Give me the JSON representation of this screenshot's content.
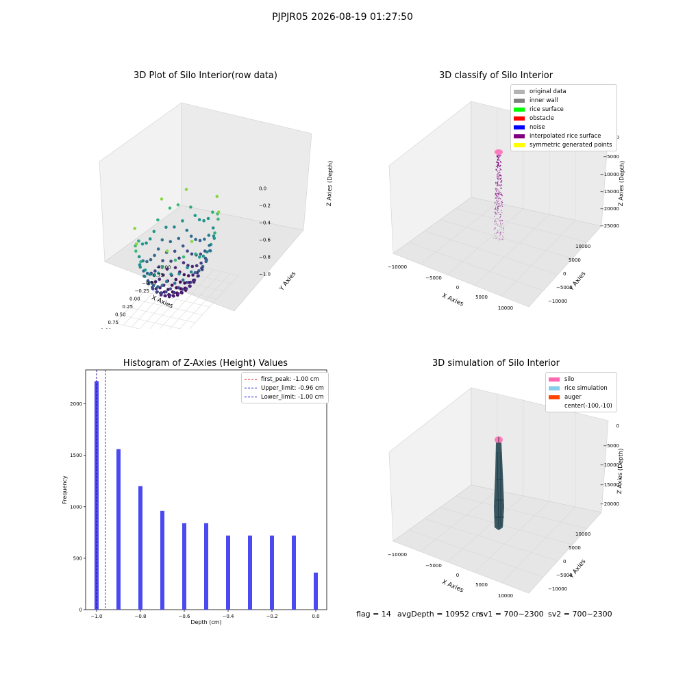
{
  "suptitle": "PJPJR05 2026-08-19 01:27:50",
  "colors": {
    "axis_pane": "#f2f2f2",
    "grid": "#d8d8d8",
    "bar": "#4a4af0",
    "peak_line": "#ff0000",
    "limit_line": "#0000cc",
    "rice_sim": "#2f4f5a"
  },
  "chart_data": [
    {
      "type": "scatter",
      "panel": "top-left",
      "title": "3D Plot of Silo Interior(row data)",
      "xlabel": "X Axies",
      "ylabel": "Y Axies",
      "zlabel": "Z Axies (Depth)",
      "x_ticks": [
        "−1.00",
        "−0.75",
        "−0.50",
        "−0.25",
        "0.00",
        "0.25",
        "0.50",
        "0.75",
        "1.00"
      ],
      "y_ticks": [
        "−1.00",
        "−0.75",
        "−0.50",
        "−0.25",
        "0.00",
        "0.25",
        "0.50",
        "0.75",
        "1.00"
      ],
      "z_ticks": [
        "0.0",
        "−0.2",
        "−0.4",
        "−0.6",
        "−0.8",
        "−1.0"
      ],
      "xlim": [
        -1,
        1
      ],
      "ylim": [
        -1,
        1
      ],
      "zlim": [
        -1.1,
        0.05
      ],
      "surface": "hemispherical bowl z = −sqrt(1 − x² − y²), colored by depth (viridis)",
      "colormap": "viridis",
      "grid": true
    },
    {
      "type": "scatter",
      "panel": "top-right",
      "title": "3D classify of Silo Interior",
      "xlabel": "X Axies",
      "ylabel": "Y Axies",
      "zlabel": "Z Axies (Depth)",
      "x_ticks": [
        "−10000",
        "−5000",
        "0",
        "5000",
        "10000"
      ],
      "y_ticks": [
        "−10000",
        "−5000",
        "0",
        "5000",
        "10000"
      ],
      "z_ticks": [
        "0",
        "−5000",
        "−10000",
        "−15000",
        "−20000",
        "−25000"
      ],
      "legend": [
        {
          "label": "original data",
          "color": "#b3b3b3"
        },
        {
          "label": "inner wall",
          "color": "#808080"
        },
        {
          "label": "rice surface",
          "color": "#00ff00"
        },
        {
          "label": "obstacle",
          "color": "#ff0000"
        },
        {
          "label": "noise",
          "color": "#0000ff"
        },
        {
          "label": "interpolated rice surface",
          "color": "#800080"
        },
        {
          "label": "symmetric generated points",
          "color": "#ffff00"
        }
      ],
      "legend_position": "top-right",
      "grid": true
    },
    {
      "type": "bar",
      "panel": "bottom-left",
      "title": "Histogram of Z-Axies (Height) Values",
      "xlabel": "Depth (cm)",
      "ylabel": "Frequency",
      "x": [
        -1.0,
        -0.9,
        -0.8,
        -0.7,
        -0.6,
        -0.5,
        -0.4,
        -0.3,
        -0.2,
        -0.1,
        0.0
      ],
      "values": [
        2220,
        1560,
        1200,
        960,
        840,
        840,
        720,
        720,
        720,
        720,
        360
      ],
      "x_ticks": [
        "−1.0",
        "−0.8",
        "−0.6",
        "−0.4",
        "−0.2",
        "0.0"
      ],
      "x_tick_values": [
        -1.0,
        -0.8,
        -0.6,
        -0.4,
        -0.2,
        0.0
      ],
      "y_ticks": [
        "0",
        "500",
        "1000",
        "1500",
        "2000"
      ],
      "y_tick_values": [
        0,
        500,
        1000,
        1500,
        2000
      ],
      "xlim": [
        -1.05,
        0.05
      ],
      "ylim": [
        0,
        2330
      ],
      "vlines": [
        {
          "label": "first_peak: -1.00 cm",
          "x": -1.0,
          "color": "#ff0000"
        },
        {
          "label": "Upper_limit: -0.96 cm",
          "x": -0.96,
          "color": "#0000cc"
        },
        {
          "label": "Lower_limit: -1.00 cm",
          "x": -1.0,
          "color": "#0000cc"
        }
      ],
      "legend_position": "top-right"
    },
    {
      "type": "scatter",
      "panel": "bottom-right",
      "title": "3D simulation of Silo Interior",
      "xlabel": "X Axies",
      "ylabel": "Y Axies",
      "zlabel": "Z Axies (Depth)",
      "x_ticks": [
        "−10000",
        "−5000",
        "0",
        "5000",
        "10000"
      ],
      "y_ticks": [
        "−10000",
        "−5000",
        "0",
        "5000",
        "10000"
      ],
      "z_ticks": [
        "0",
        "−5000",
        "−10000",
        "−15000",
        "−20000"
      ],
      "legend": [
        {
          "label": "silo",
          "color": "#ff69b4"
        },
        {
          "label": "rice simulation",
          "color": "#87ceeb"
        },
        {
          "label": "auger",
          "color": "#ff4500"
        },
        {
          "label": "center(-100,-10)",
          "color": ""
        }
      ],
      "legend_position": "top-right",
      "grid": true
    }
  ],
  "footer": {
    "flag": "flag = 14",
    "avg_depth": "avgDepth = 10952 cm",
    "sv1": "sv1 = 700~2300",
    "sv2": "sv2 = 700~2300"
  }
}
